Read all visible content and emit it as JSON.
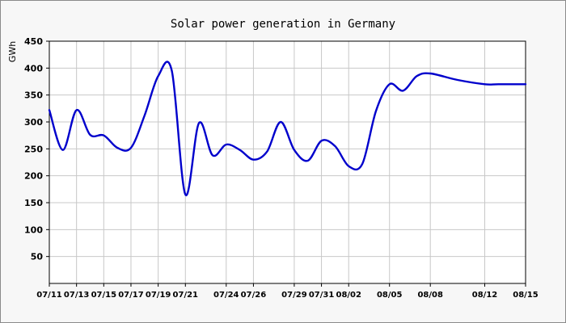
{
  "chart_data": {
    "type": "line",
    "title": "Solar power generation in Germany",
    "ylabel": "GWh",
    "xlabel": "",
    "ylim": [
      0,
      450
    ],
    "yticks": [
      50,
      100,
      150,
      200,
      250,
      300,
      350,
      400,
      450
    ],
    "grid": true,
    "legend": "none",
    "x_ticks": [
      "07/11",
      "07/13",
      "07/15",
      "07/17",
      "07/19",
      "07/21",
      "07/24",
      "07/26",
      "07/29",
      "07/31",
      "08/02",
      "08/05",
      "08/08",
      "08/12",
      "08/15"
    ],
    "series": [
      {
        "color": "#0000cc",
        "x": [
          "07/11",
          "07/12",
          "07/13",
          "07/14",
          "07/15",
          "07/16",
          "07/17",
          "07/18",
          "07/19",
          "07/20",
          "07/21",
          "07/22",
          "07/23",
          "07/24",
          "07/25",
          "07/26",
          "07/27",
          "07/28",
          "07/29",
          "07/30",
          "07/31",
          "08/01",
          "08/02",
          "08/03",
          "08/04",
          "08/05",
          "08/06",
          "08/07",
          "08/08",
          "08/10",
          "08/12",
          "08/13",
          "08/15"
        ],
        "y": [
          322,
          248,
          322,
          276,
          275,
          252,
          252,
          312,
          385,
          395,
          165,
          298,
          238,
          258,
          248,
          230,
          245,
          300,
          248,
          228,
          265,
          255,
          218,
          222,
          320,
          370,
          358,
          385,
          390,
          378,
          370,
          370,
          370
        ]
      }
    ]
  }
}
